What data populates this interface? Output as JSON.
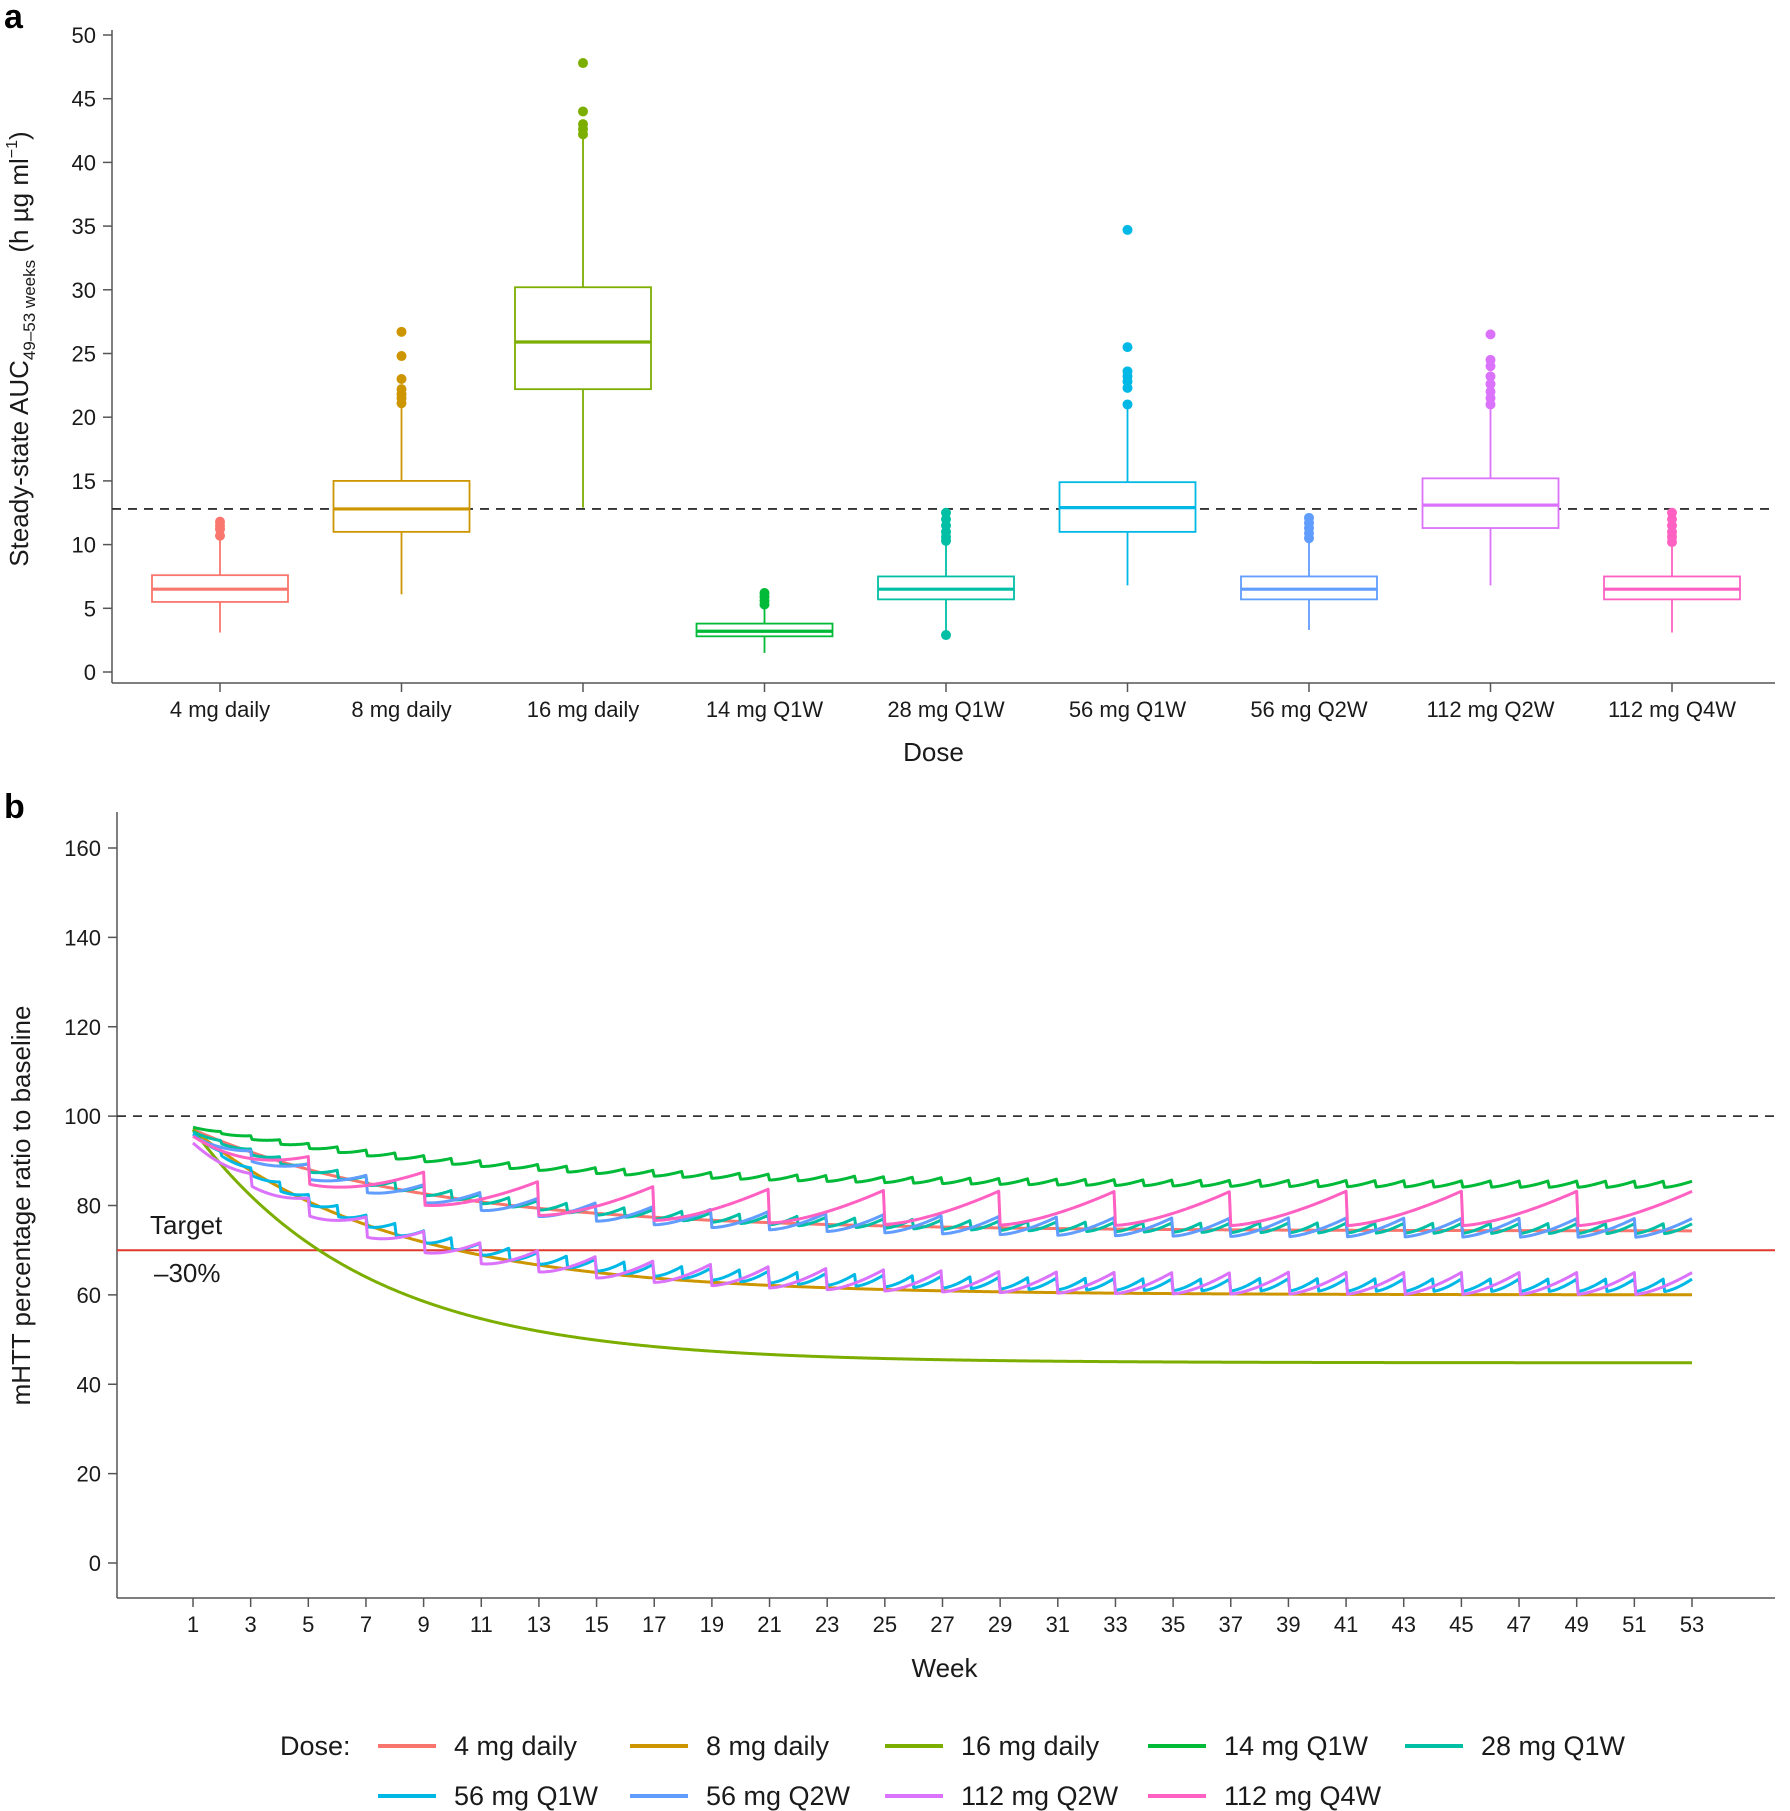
{
  "panels": {
    "a": "a",
    "b": "b"
  },
  "chart_data": [
    {
      "panel": "a",
      "type": "box",
      "title": "",
      "xlabel": "Dose",
      "ylabel": "Steady-state AUC",
      "ylabel_sub": "49–53 weeks",
      "ylabel_unit_prefix": " (h µg ml",
      "ylabel_unit_sup": "−1",
      "ylabel_unit_suffix": ")",
      "ylim": [
        0,
        50
      ],
      "yticks": [
        0,
        5,
        10,
        15,
        20,
        25,
        30,
        35,
        40,
        45,
        50
      ],
      "reference_line": 12.8,
      "groups": [
        {
          "label": "4 mg daily",
          "color": "#F8766D",
          "q1": 5.5,
          "median": 6.5,
          "q3": 7.6,
          "whisker_low": 3.1,
          "whisker_high": 10.6,
          "outliers": [
            10.7,
            11.2,
            11.5,
            11.8
          ]
        },
        {
          "label": "8 mg daily",
          "color": "#CD9600",
          "q1": 11.0,
          "median": 12.8,
          "q3": 15.0,
          "whisker_low": 6.1,
          "whisker_high": 21.0,
          "outliers": [
            21.1,
            21.5,
            21.8,
            22.2,
            23.0,
            24.8,
            26.7
          ]
        },
        {
          "label": "16 mg daily",
          "color": "#7CAE00",
          "q1": 22.2,
          "median": 25.9,
          "q3": 30.2,
          "whisker_low": 12.9,
          "whisker_high": 42.0,
          "outliers": [
            42.2,
            42.6,
            43.0,
            44.0,
            47.8
          ]
        },
        {
          "label": "14 mg Q1W",
          "color": "#00BA38",
          "q1": 2.8,
          "median": 3.2,
          "q3": 3.8,
          "whisker_low": 1.5,
          "whisker_high": 5.2,
          "outliers": [
            5.3,
            5.6,
            5.9,
            6.2
          ]
        },
        {
          "label": "28 mg Q1W",
          "color": "#00BFA4",
          "q1": 5.7,
          "median": 6.5,
          "q3": 7.5,
          "whisker_low": 3.2,
          "whisker_high": 10.2,
          "outliers": [
            2.9,
            10.3,
            10.6,
            11.0,
            11.5,
            12.0,
            12.5
          ]
        },
        {
          "label": "56 mg Q1W",
          "color": "#00B8E5",
          "q1": 11.0,
          "median": 12.9,
          "q3": 14.9,
          "whisker_low": 6.8,
          "whisker_high": 20.9,
          "outliers": [
            21.0,
            22.3,
            22.8,
            23.2,
            23.6,
            25.5,
            34.7
          ]
        },
        {
          "label": "56 mg Q2W",
          "color": "#619CFF",
          "q1": 5.7,
          "median": 6.5,
          "q3": 7.5,
          "whisker_low": 3.3,
          "whisker_high": 10.4,
          "outliers": [
            10.5,
            10.9,
            11.3,
            11.7,
            12.1
          ]
        },
        {
          "label": "112 mg Q2W",
          "color": "#DB72FB",
          "q1": 11.3,
          "median": 13.1,
          "q3": 15.2,
          "whisker_low": 6.8,
          "whisker_high": 20.8,
          "outliers": [
            21.0,
            21.5,
            22.0,
            22.6,
            23.2,
            24.0,
            24.5,
            26.5
          ]
        },
        {
          "label": "112 mg Q4W",
          "color": "#FF61C3",
          "q1": 5.7,
          "median": 6.5,
          "q3": 7.5,
          "whisker_low": 3.1,
          "whisker_high": 10.0,
          "outliers": [
            10.2,
            10.6,
            11.0,
            11.5,
            12.0,
            12.5
          ]
        }
      ]
    },
    {
      "panel": "b",
      "type": "line",
      "title": "",
      "xlabel": "Week",
      "ylabel": "mHTT percentage ratio to baseline",
      "xlim": [
        1,
        53
      ],
      "ylim": [
        0,
        160
      ],
      "xticks": [
        1,
        3,
        5,
        7,
        9,
        11,
        13,
        15,
        17,
        19,
        21,
        23,
        25,
        27,
        29,
        31,
        33,
        35,
        37,
        39,
        41,
        43,
        45,
        47,
        49,
        51,
        53
      ],
      "yticks": [
        0,
        20,
        40,
        60,
        80,
        100,
        120,
        140,
        160
      ],
      "baseline_line": 100,
      "target_line": 70,
      "target_label": "Target",
      "target_sub": "–30%",
      "target_color": "#E0392B",
      "legend_title": "Dose:",
      "series": [
        {
          "name": "4 mg daily",
          "color": "#F8766D",
          "pattern": "daily",
          "start": 97,
          "plateau": 74.3,
          "tau": 8.0,
          "amp": 0
        },
        {
          "name": "8 mg daily",
          "color": "#CD9600",
          "pattern": "daily",
          "start": 97,
          "plateau": 60.0,
          "tau": 7.0,
          "amp": 0
        },
        {
          "name": "16 mg daily",
          "color": "#7CAE00",
          "pattern": "daily",
          "start": 97,
          "plateau": 44.8,
          "tau": 6.0,
          "amp": 0
        },
        {
          "name": "14 mg Q1W",
          "color": "#00BA38",
          "pattern": "weekly",
          "period": 1,
          "start": 97.5,
          "plateau": 84.5,
          "tau": 10.0,
          "amp": 1.0
        },
        {
          "name": "28 mg Q1W",
          "color": "#00BFA4",
          "pattern": "weekly",
          "period": 1,
          "start": 96.5,
          "plateau": 74.5,
          "tau": 8.5,
          "amp": 1.6
        },
        {
          "name": "56 mg Q1W",
          "color": "#00B8E5",
          "pattern": "weekly",
          "period": 1,
          "start": 96,
          "plateau": 61.8,
          "tau": 7.0,
          "amp": 2.0
        },
        {
          "name": "56 mg Q2W",
          "color": "#619CFF",
          "pattern": "weekly",
          "period": 2,
          "start": 95.5,
          "plateau": 74.5,
          "tau": 8.0,
          "amp": 3.0
        },
        {
          "name": "112 mg Q2W",
          "color": "#DB72FB",
          "pattern": "weekly",
          "period": 2,
          "start": 94,
          "plateau": 62.0,
          "tau": 6.5,
          "amp": 3.5
        },
        {
          "name": "112 mg Q4W",
          "color": "#FF61C3",
          "pattern": "weekly",
          "period": 4,
          "start": 95.5,
          "plateau": 78.5,
          "tau": 6.0,
          "amp": 5.5
        }
      ]
    }
  ]
}
